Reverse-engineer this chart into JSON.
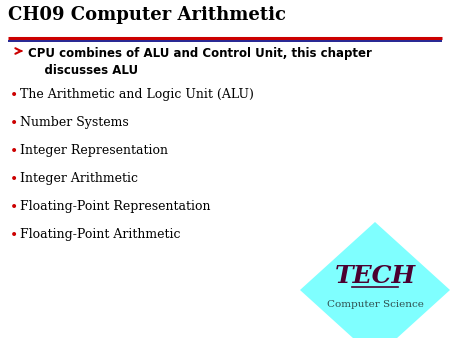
{
  "title": "CH09 Computer Arithmetic",
  "title_color": "#000000",
  "title_fontsize": 13,
  "subtitle_text": "CPU combines of ALU and Control Unit, this chapter\n    discusses ALU",
  "subtitle_color": "#000000",
  "subtitle_arrow_color": "#cc0000",
  "subtitle_fontsize": 8.5,
  "bullet_items": [
    "The Arithmetic and Logic Unit (ALU)",
    "Number Systems",
    "Integer Representation",
    "Integer Arithmetic",
    "Floating-Point Representation",
    "Floating-Point Arithmetic"
  ],
  "bullet_color": "#000000",
  "bullet_fontsize": 9,
  "bullet_dot_color": "#cc0000",
  "line1_color": "#cc0000",
  "line2_color": "#000080",
  "bg_color": "#ffffff",
  "diamond_color": "#7fffff",
  "tech_text": "TECH",
  "tech_color": "#4b0030",
  "tech_fontsize": 18,
  "cs_text": "Computer Science",
  "cs_color": "#2f4f4f",
  "cs_fontsize": 7.5
}
